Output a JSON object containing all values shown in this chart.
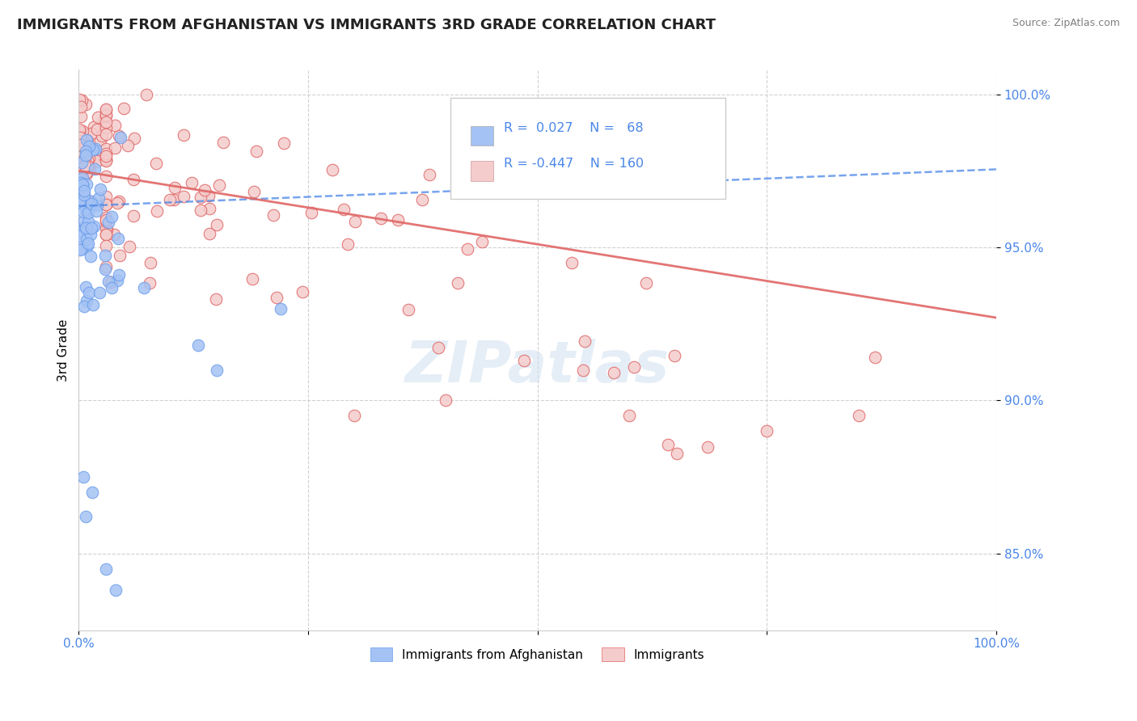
{
  "title": "IMMIGRANTS FROM AFGHANISTAN VS IMMIGRANTS 3RD GRADE CORRELATION CHART",
  "source": "Source: ZipAtlas.com",
  "ylabel": "3rd Grade",
  "xlim": [
    0.0,
    1.0
  ],
  "ylim": [
    0.825,
    1.008
  ],
  "yticks": [
    0.85,
    0.9,
    0.95,
    1.0
  ],
  "ytick_labels": [
    "85.0%",
    "90.0%",
    "95.0%",
    "100.0%"
  ],
  "legend_R1": "0.027",
  "legend_N1": "68",
  "legend_R2": "-0.447",
  "legend_N2": "160",
  "legend_label1": "Immigrants from Afghanistan",
  "legend_label2": "Immigrants",
  "blue_color": "#a4c2f4",
  "pink_color": "#f4cccc",
  "blue_edge_color": "#6d9eeb",
  "pink_edge_color": "#e06666",
  "blue_line_color": "#4a86e8",
  "pink_line_color": "#e06666",
  "text_color": "#4a86e8",
  "background_color": "#ffffff",
  "title_fontsize": 13,
  "axis_label_fontsize": 11,
  "tick_fontsize": 11,
  "watermark_text": "ZIPatlas",
  "blue_trend_x0": 0.0,
  "blue_trend_y0": 0.9635,
  "blue_trend_x1": 1.0,
  "blue_trend_y1": 0.9755,
  "pink_trend_x0": 0.0,
  "pink_trend_y0": 0.975,
  "pink_trend_x1": 0.73,
  "pink_trend_y1": 0.94
}
